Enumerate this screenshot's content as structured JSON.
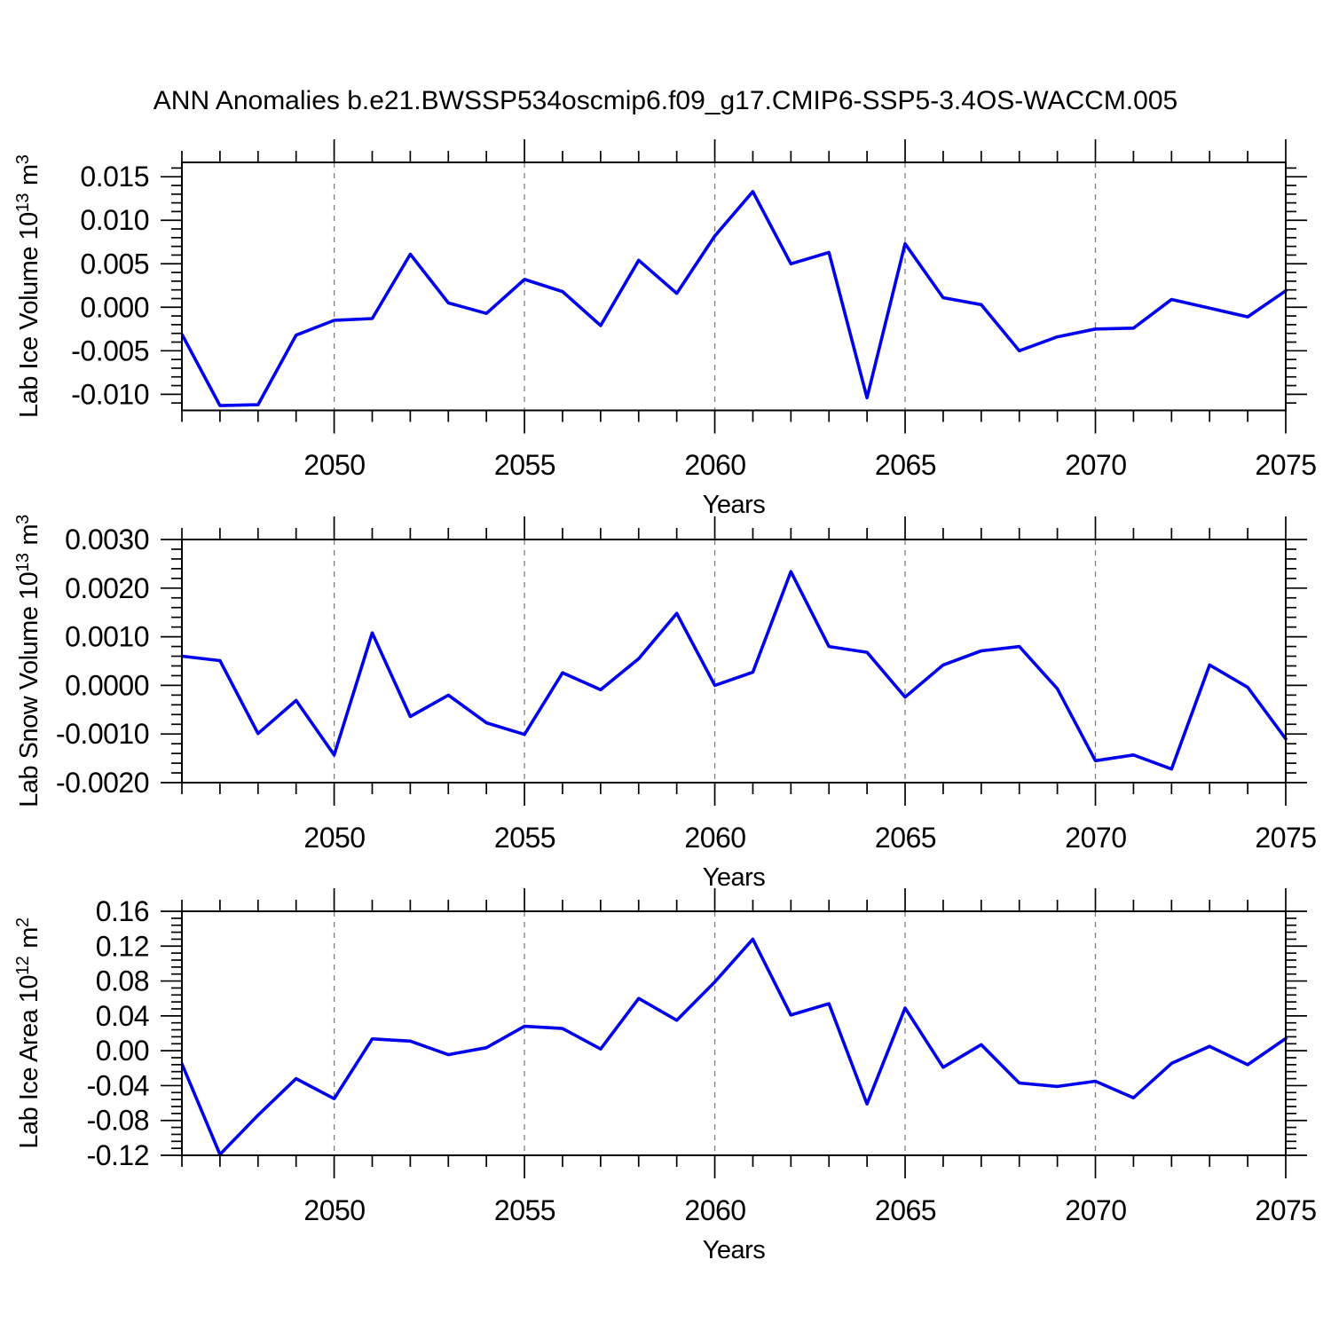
{
  "title": "ANN Anomalies b.e21.BWSSP534oscmip6.f09_g17.CMIP6-SSP5-3.4OS-WACCM.005",
  "figure": {
    "background_color": "#ffffff",
    "line_color": "#0000ee",
    "grid_color": "#808080",
    "axis_color": "#000000"
  },
  "chart_data": [
    {
      "type": "line",
      "ylabel": "Lab Ice Volume 10^13 m^3",
      "ylabel_parts": {
        "pre": "Lab Ice Volume 10",
        "exp": "13",
        "unit": "m",
        "unit_exp": "3"
      },
      "xlabel": "Years",
      "x": [
        2046,
        2047,
        2048,
        2049,
        2050,
        2051,
        2052,
        2053,
        2054,
        2055,
        2056,
        2057,
        2058,
        2059,
        2060,
        2061,
        2062,
        2063,
        2064,
        2065,
        2066,
        2067,
        2068,
        2069,
        2070,
        2071,
        2072,
        2073,
        2074,
        2075
      ],
      "y": [
        -0.0031,
        -0.0113,
        -0.0112,
        -0.0032,
        -0.0015,
        -0.0013,
        0.0061,
        0.0005,
        -0.0007,
        0.0032,
        0.0018,
        -0.0021,
        0.0054,
        0.0016,
        0.0082,
        0.0133,
        0.005,
        0.0063,
        -0.0104,
        0.0073,
        0.0011,
        0.0003,
        -0.005,
        -0.0034,
        -0.0025,
        -0.0024,
        0.0009,
        -0.0001,
        -0.0011,
        0.0019
      ],
      "ylim": [
        -0.01185,
        0.01665
      ],
      "yticks": [
        {
          "value": 0.015,
          "label": "0.015"
        },
        {
          "value": 0.01,
          "label": "0.010"
        },
        {
          "value": 0.005,
          "label": "0.005"
        },
        {
          "value": 0.0,
          "label": "0.000"
        },
        {
          "value": -0.005,
          "label": "-0.005"
        },
        {
          "value": -0.01,
          "label": "-0.010"
        }
      ],
      "ytick_minor_step": 0.001,
      "xlim": [
        2046,
        2075
      ],
      "xticks": [
        2050,
        2055,
        2060,
        2065,
        2070,
        2075
      ],
      "xticklabels": [
        "2050",
        "2055",
        "2060",
        "2065",
        "2070",
        "2075"
      ],
      "xtick_minor_step": 1,
      "gridline_years": [
        2050,
        2055,
        2060,
        2065,
        2070
      ],
      "grid_style": "vertical-dashed",
      "legend": "none"
    },
    {
      "type": "line",
      "ylabel": "Lab Snow Volume 10^13 m^3",
      "ylabel_parts": {
        "pre": "Lab Snow Volume 10",
        "exp": "13",
        "unit": "m",
        "unit_exp": "3"
      },
      "xlabel": "Years",
      "x": [
        2046,
        2047,
        2048,
        2049,
        2050,
        2051,
        2052,
        2053,
        2054,
        2055,
        2056,
        2057,
        2058,
        2059,
        2060,
        2061,
        2062,
        2063,
        2064,
        2065,
        2066,
        2067,
        2068,
        2069,
        2070,
        2071,
        2072,
        2073,
        2074,
        2075
      ],
      "y": [
        0.0006,
        0.00051,
        -0.00099,
        -0.00031,
        -0.00143,
        0.00108,
        -0.00064,
        -0.0002,
        -0.00077,
        -0.00101,
        0.00026,
        -9e-05,
        0.00055,
        0.00148,
        0.0,
        0.00027,
        0.00234,
        0.0008,
        0.00068,
        -0.00024,
        0.00042,
        0.00071,
        0.0008,
        -7e-05,
        -0.00155,
        -0.00143,
        -0.00172,
        0.00042,
        -4e-05,
        -0.0011
      ],
      "ylim": [
        -0.002,
        0.003
      ],
      "yticks": [
        {
          "value": 0.003,
          "label": "0.0030"
        },
        {
          "value": 0.002,
          "label": "0.0020"
        },
        {
          "value": 0.001,
          "label": "0.0010"
        },
        {
          "value": 0.0,
          "label": "0.0000"
        },
        {
          "value": -0.001,
          "label": "-0.0010"
        },
        {
          "value": -0.002,
          "label": "-0.0020"
        }
      ],
      "ytick_minor_step": 0.0002,
      "xlim": [
        2046,
        2075
      ],
      "xticks": [
        2050,
        2055,
        2060,
        2065,
        2070,
        2075
      ],
      "xticklabels": [
        "2050",
        "2055",
        "2060",
        "2065",
        "2070",
        "2075"
      ],
      "xtick_minor_step": 1,
      "gridline_years": [
        2050,
        2055,
        2060,
        2065,
        2070
      ],
      "grid_style": "vertical-dashed",
      "legend": "none"
    },
    {
      "type": "line",
      "ylabel": "Lab Ice Area 10^12 m^2",
      "ylabel_parts": {
        "pre": "Lab Ice Area 10",
        "exp": "12",
        "unit": "m",
        "unit_exp": "2"
      },
      "xlabel": "Years",
      "x": [
        2046,
        2047,
        2048,
        2049,
        2050,
        2051,
        2052,
        2053,
        2054,
        2055,
        2056,
        2057,
        2058,
        2059,
        2060,
        2061,
        2062,
        2063,
        2064,
        2065,
        2066,
        2067,
        2068,
        2069,
        2070,
        2071,
        2072,
        2073,
        2074,
        2075
      ],
      "y": [
        -0.015,
        -0.119,
        -0.074,
        -0.032,
        -0.055,
        0.0136,
        0.011,
        -0.0045,
        0.0035,
        0.028,
        0.0255,
        0.002,
        0.06,
        0.035,
        0.079,
        0.128,
        0.041,
        0.054,
        -0.061,
        0.049,
        -0.019,
        0.007,
        -0.037,
        -0.041,
        -0.035,
        -0.054,
        -0.0145,
        0.005,
        -0.016,
        0.014
      ],
      "ylim": [
        -0.12,
        0.16
      ],
      "yticks": [
        {
          "value": 0.16,
          "label": "0.16"
        },
        {
          "value": 0.12,
          "label": "0.12"
        },
        {
          "value": 0.08,
          "label": "0.08"
        },
        {
          "value": 0.04,
          "label": "0.04"
        },
        {
          "value": 0.0,
          "label": "0.00"
        },
        {
          "value": -0.04,
          "label": "-0.04"
        },
        {
          "value": -0.08,
          "label": "-0.08"
        },
        {
          "value": -0.12,
          "label": "-0.12"
        }
      ],
      "ytick_minor_step": 0.008,
      "xlim": [
        2046,
        2075
      ],
      "xticks": [
        2050,
        2055,
        2060,
        2065,
        2070,
        2075
      ],
      "xticklabels": [
        "2050",
        "2055",
        "2060",
        "2065",
        "2070",
        "2075"
      ],
      "xtick_minor_step": 1,
      "gridline_years": [
        2050,
        2055,
        2060,
        2065,
        2070
      ],
      "grid_style": "vertical-dashed",
      "legend": "none"
    }
  ]
}
